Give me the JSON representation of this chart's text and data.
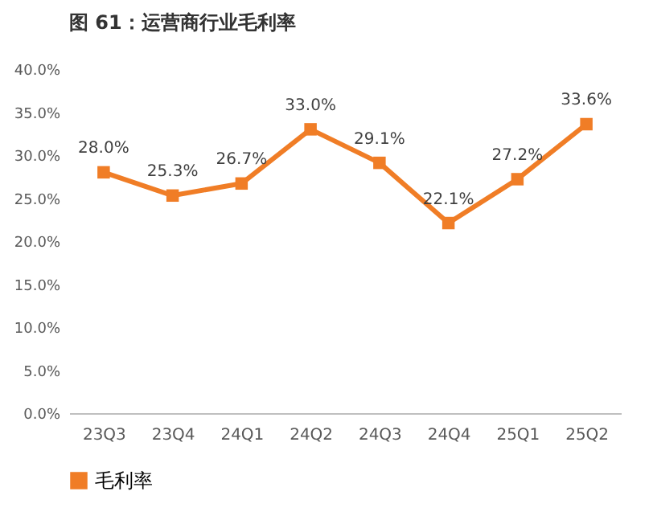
{
  "chart_data": {
    "type": "line",
    "title": "图 61：运营商行业毛利率",
    "categories": [
      "23Q3",
      "23Q4",
      "24Q1",
      "24Q2",
      "24Q3",
      "24Q4",
      "25Q1",
      "25Q2"
    ],
    "series": [
      {
        "name": "毛利率",
        "color": "#f07d26",
        "values": [
          28.0,
          25.3,
          26.7,
          33.0,
          29.1,
          22.1,
          27.2,
          33.6
        ],
        "value_labels": [
          "28.0%",
          "25.3%",
          "26.7%",
          "33.0%",
          "29.1%",
          "22.1%",
          "27.2%",
          "33.6%"
        ]
      }
    ],
    "ylim": [
      0,
      40
    ],
    "yticks": [
      {
        "value": 0,
        "label": "0.0%"
      },
      {
        "value": 5,
        "label": "5.0%"
      },
      {
        "value": 10,
        "label": "10.0%"
      },
      {
        "value": 15,
        "label": "15.0%"
      },
      {
        "value": 20,
        "label": "20.0%"
      },
      {
        "value": 25,
        "label": "25.0%"
      },
      {
        "value": 30,
        "label": "30.0%"
      },
      {
        "value": 35,
        "label": "35.0%"
      },
      {
        "value": 40,
        "label": "40.0%"
      }
    ],
    "marker": "square",
    "line_style": "solid",
    "legend": "bottom",
    "grid": false
  }
}
